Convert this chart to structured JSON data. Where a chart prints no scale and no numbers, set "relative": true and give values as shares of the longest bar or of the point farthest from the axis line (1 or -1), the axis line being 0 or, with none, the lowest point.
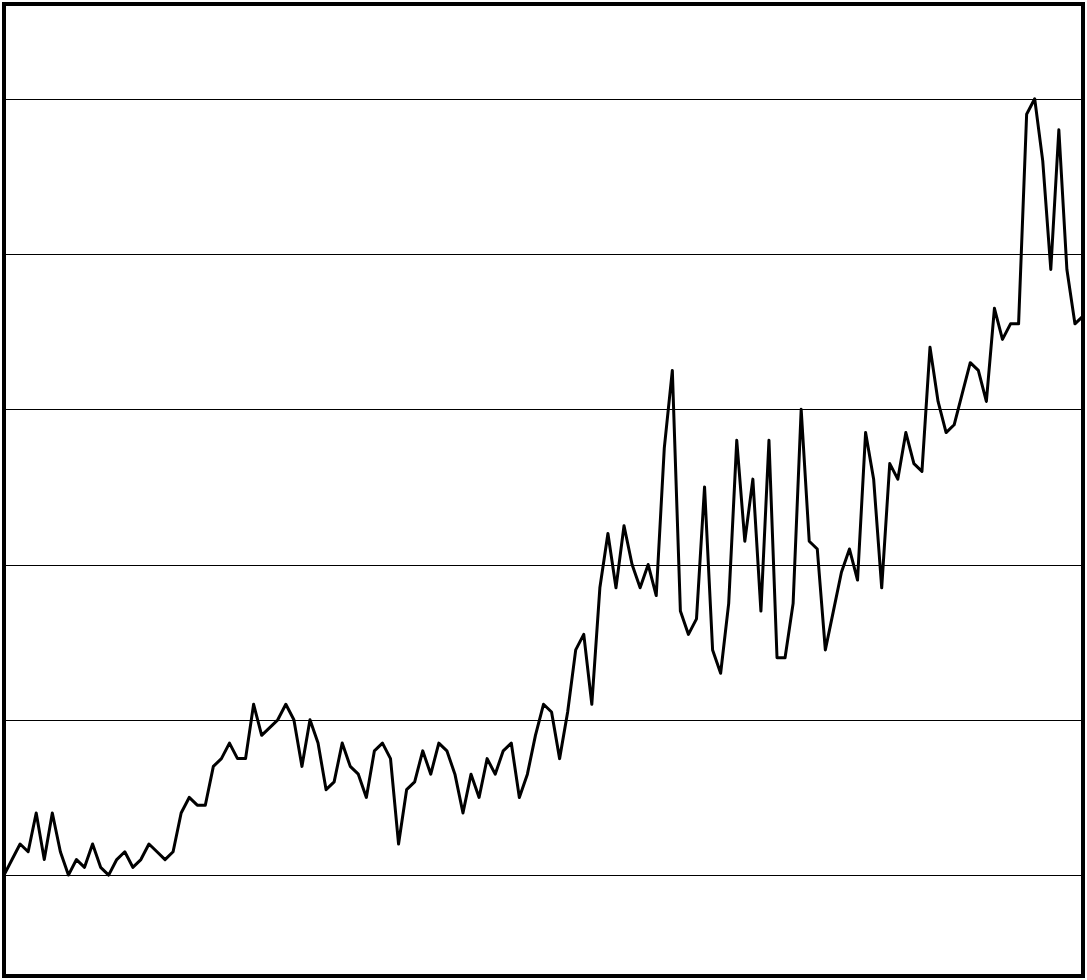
{
  "chart_data": {
    "type": "line",
    "relative": true,
    "grid": "y",
    "marker": "none",
    "line_style": "solid",
    "tick_labels": false,
    "categories": [
      null,
      null,
      null,
      null,
      null,
      null,
      null,
      null,
      null,
      null,
      null,
      null,
      null,
      null,
      null,
      null,
      null,
      null,
      null,
      null,
      null,
      null,
      null,
      null,
      null,
      null,
      null,
      null,
      null,
      null,
      null,
      null,
      null,
      null,
      null,
      null,
      null,
      null,
      null,
      null,
      null,
      null,
      null,
      null,
      null,
      null,
      null,
      null,
      null,
      null,
      null,
      null,
      null,
      null,
      null,
      null,
      null,
      null,
      null,
      null,
      null,
      null,
      null,
      null,
      null,
      null,
      null,
      null,
      null,
      null,
      null,
      null,
      null,
      null,
      null,
      null,
      null,
      null,
      null,
      null,
      null,
      null,
      null,
      null,
      null,
      null,
      null,
      null,
      null,
      null,
      null,
      null,
      null,
      null,
      null,
      null,
      null,
      null,
      null,
      null,
      null,
      null,
      null,
      null,
      null,
      null,
      null,
      null,
      null,
      null,
      null,
      null,
      null,
      null,
      null,
      null,
      null,
      null,
      null,
      null,
      null,
      null,
      null,
      null,
      null,
      null,
      null,
      null,
      null,
      null,
      null,
      null,
      null,
      null,
      null
    ],
    "series": [
      {
        "color": "#000000",
        "values": [
          0.0,
          0.02,
          0.04,
          0.03,
          0.08,
          0.02,
          0.08,
          0.03,
          0.0,
          0.02,
          0.01,
          0.04,
          0.01,
          0,
          0.02,
          0.03,
          0.01,
          0.02,
          0.04,
          0.03,
          0.02,
          0.03,
          0.08,
          0.1,
          0.09,
          0.09,
          0.14,
          0.15,
          0.17,
          0.15,
          0.15,
          0.22,
          0.18,
          0.19,
          0.2,
          0.22,
          0.2,
          0.14,
          0.2,
          0.17,
          0.11,
          0.12,
          0.17,
          0.14,
          0.13,
          0.1,
          0.16,
          0.17,
          0.15,
          0.04,
          0.11,
          0.12,
          0.16,
          0.13,
          0.17,
          0.16,
          0.13,
          0.08,
          0.13,
          0.1,
          0.15,
          0.13,
          0.16,
          0.17,
          0.1,
          0.13,
          0.18,
          0.22,
          0.21,
          0.15,
          0.21,
          0.29,
          0.31,
          0.22,
          0.37,
          0.44,
          0.37,
          0.45,
          0.4,
          0.37,
          0.4,
          0.36,
          0.55,
          0.65,
          0.34,
          0.31,
          0.33,
          0.5,
          0.29,
          0.26,
          0.35,
          0.56,
          0.43,
          0.51,
          0.34,
          0.56,
          0.28,
          0.28,
          0.35,
          0.6,
          0.43,
          0.42,
          0.29,
          0.34,
          0.39,
          0.42,
          0.38,
          0.57,
          0.51,
          0.37,
          0.53,
          0.51,
          0.57,
          0.53,
          0.52,
          0.68,
          0.61,
          0.57,
          0.58,
          0.62,
          0.66,
          0.65,
          0.61,
          0.73,
          0.69,
          0.71,
          0.71,
          0.98,
          1,
          0.92,
          0.78,
          0.96,
          0.78,
          0.71,
          0.72
        ]
      }
    ]
  }
}
